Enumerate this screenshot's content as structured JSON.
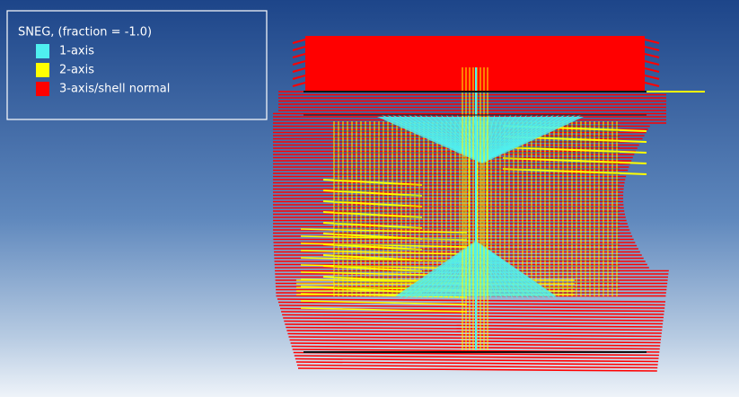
{
  "legend": {
    "title": "SNEG, (fraction = -1.0)",
    "items": [
      {
        "name": "1-axis",
        "color": "#4ff0f0"
      },
      {
        "name": "2-axis",
        "color": "#ffff00"
      },
      {
        "name": "3-axis/shell normal",
        "color": "#ff0000"
      }
    ]
  }
}
